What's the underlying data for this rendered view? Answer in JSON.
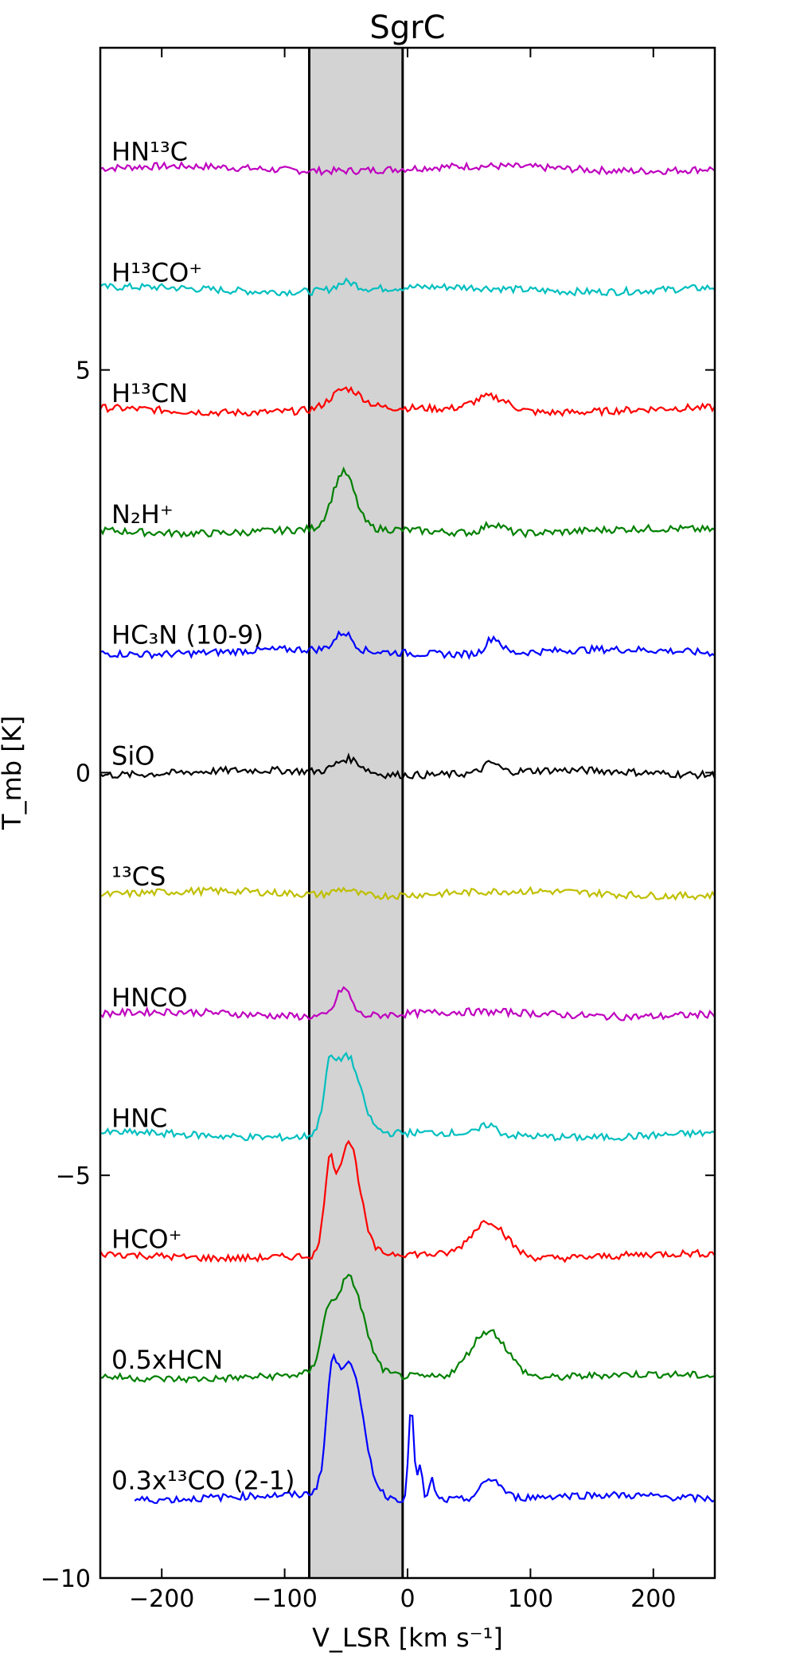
{
  "chart_data": {
    "type": "line",
    "title": "SgrC",
    "xlabel": "V_LSR [km s⁻¹]",
    "ylabel": "T_mb [K]",
    "xlim": [
      -250,
      250
    ],
    "ylim": [
      -10,
      9
    ],
    "xticks": [
      -200,
      -100,
      0,
      100,
      200
    ],
    "xtick_labels": [
      "−200",
      "−100",
      "0",
      "100",
      "200"
    ],
    "yticks": [
      -10,
      -5,
      0,
      5
    ],
    "ytick_labels": [
      "−10",
      "−5",
      "0",
      "5"
    ],
    "shaded_region": {
      "x": [
        -80,
        -4
      ],
      "color": "#d3d3d3"
    },
    "grid": false,
    "series": [
      {
        "name": "HN¹³C",
        "color": "#bf00bf",
        "offset": 7.5,
        "peaks": [],
        "label_y": 7.6
      },
      {
        "name": "H¹³CO⁺",
        "color": "#00bfbf",
        "offset": 6.0,
        "peaks": [
          [
            -50,
            0.1,
            8
          ]
        ],
        "label_y": 6.1
      },
      {
        "name": "H¹³CN",
        "color": "#ff0000",
        "offset": 4.5,
        "peaks": [
          [
            -50,
            0.25,
            12
          ],
          [
            68,
            0.18,
            14
          ]
        ],
        "label_y": 4.6
      },
      {
        "name": "N₂H⁺",
        "color": "#008000",
        "offset": 3.0,
        "peaks": [
          [
            -52,
            0.7,
            9
          ],
          [
            70,
            0.12,
            8
          ]
        ],
        "label_y": 3.1
      },
      {
        "name": "HC₃N (10-9)",
        "color": "#0000ff",
        "offset": 1.5,
        "peaks": [
          [
            -52,
            0.22,
            7
          ],
          [
            70,
            0.2,
            6
          ]
        ],
        "label_y": 1.6
      },
      {
        "name": "SiO",
        "color": "#000000",
        "offset": 0.0,
        "peaks": [
          [
            -48,
            0.18,
            10
          ],
          [
            68,
            0.12,
            6
          ]
        ],
        "label_y": 0.1
      },
      {
        "name": "¹³CS",
        "color": "#bfbf00",
        "offset": -1.5,
        "peaks": [
          [
            -52,
            0.08,
            8
          ]
        ],
        "label_y": -1.4
      },
      {
        "name": "HNCO",
        "color": "#bf00bf",
        "offset": -3.0,
        "peaks": [
          [
            -52,
            0.35,
            6
          ]
        ],
        "label_y": -2.9
      },
      {
        "name": "HNC",
        "color": "#00bfbf",
        "offset": -4.5,
        "peaks": [
          [
            -50,
            1.0,
            11
          ],
          [
            -64,
            0.5,
            4
          ],
          [
            66,
            0.12,
            6
          ]
        ],
        "label_y": -4.4
      },
      {
        "name": "HCO⁺",
        "color": "#ff0000",
        "offset": -6.0,
        "peaks": [
          [
            -48,
            1.4,
            9
          ],
          [
            -64,
            0.9,
            4
          ],
          [
            66,
            0.45,
            14
          ]
        ],
        "label_y": -5.9
      },
      {
        "name": "0.5xHCN",
        "color": "#008000",
        "offset": -7.5,
        "peaks": [
          [
            -48,
            1.2,
            12
          ],
          [
            -66,
            0.4,
            5
          ],
          [
            66,
            0.6,
            15
          ]
        ],
        "label_y": -7.4
      },
      {
        "name": "0.3x¹³CO (2-1)",
        "color": "#0000ff",
        "offset": -9.0,
        "peaks": [
          [
            -48,
            1.7,
            11
          ],
          [
            -62,
            0.9,
            4
          ],
          [
            3,
            1.2,
            2
          ],
          [
            10,
            0.4,
            2
          ],
          [
            20,
            0.25,
            2
          ],
          [
            68,
            0.25,
            8
          ]
        ],
        "label_y": -8.9
      }
    ]
  }
}
